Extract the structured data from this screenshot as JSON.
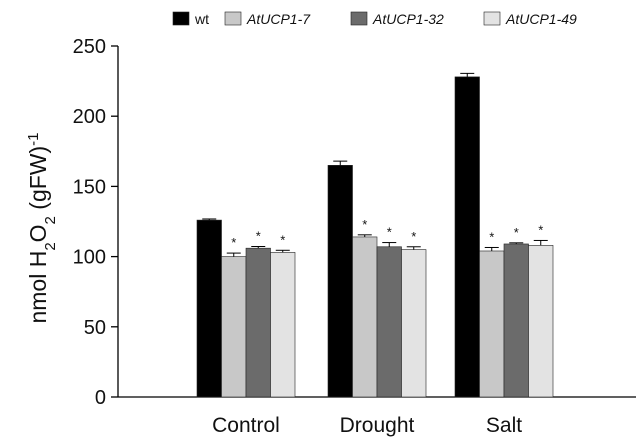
{
  "chart_data": {
    "type": "bar",
    "categories": [
      "Control",
      "Drought",
      "Salt"
    ],
    "series": [
      {
        "name": "wt",
        "italic": false,
        "color": "#000000",
        "values": [
          126,
          165,
          228
        ],
        "errors": [
          0.8,
          3,
          2.5
        ],
        "sig": [
          "",
          "",
          ""
        ]
      },
      {
        "name": "AtUCP1-7",
        "italic": true,
        "color": "#c8c8c8",
        "values": [
          100,
          114,
          104
        ],
        "errors": [
          2.5,
          1.5,
          2.5
        ],
        "sig": [
          "*",
          "*",
          "*"
        ]
      },
      {
        "name": "AtUCP1-32",
        "italic": true,
        "color": "#6b6b6b",
        "values": [
          106,
          107,
          109
        ],
        "errors": [
          1.2,
          3,
          0.8
        ],
        "sig": [
          "*",
          "*",
          "*"
        ]
      },
      {
        "name": "AtUCP1-49",
        "italic": true,
        "color": "#e3e3e3",
        "values": [
          103,
          105,
          108
        ],
        "errors": [
          1.5,
          2,
          3.5
        ],
        "sig": [
          "*",
          "*",
          "*"
        ]
      }
    ],
    "ylabel": {
      "prefix": "nmol H",
      "sub1": "2",
      "mid": "O",
      "sub2": "2",
      "suffix": " (gFW)",
      "sup": "-1"
    },
    "ylim": [
      0,
      250
    ],
    "yticks": [
      "0",
      "50",
      "100",
      "150",
      "200",
      "250"
    ],
    "legend_position": "top",
    "grid": false
  }
}
